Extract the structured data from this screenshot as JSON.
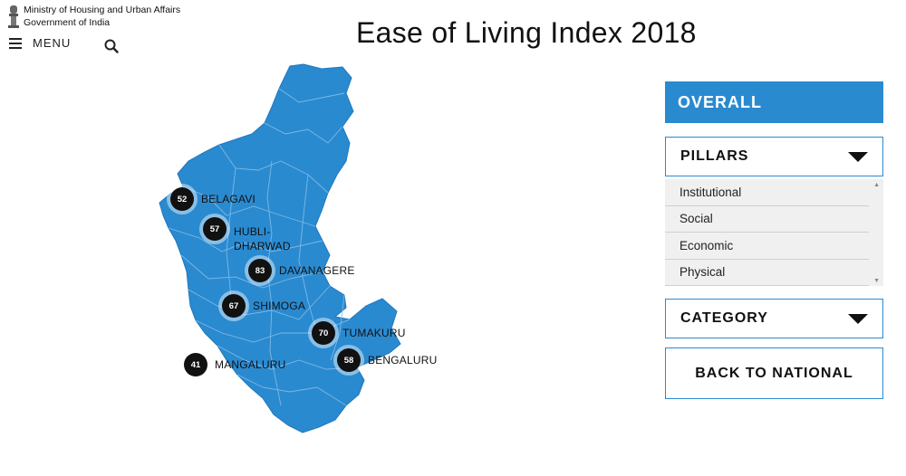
{
  "header": {
    "ministry_line1": "Ministry of Housing and Urban Affairs",
    "ministry_line2": "Government of India",
    "menu_label": "MENU",
    "title": "Ease of Living Index 2018"
  },
  "map": {
    "state_fill": "#2a8ad0",
    "cities": [
      {
        "name": "BELAGAVI",
        "score": "52"
      },
      {
        "name": "HUBLI-\nDHARWAD",
        "score": "57"
      },
      {
        "name": "DAVANAGERE",
        "score": "83"
      },
      {
        "name": "SHIMOGA",
        "score": "67"
      },
      {
        "name": "TUMAKURU",
        "score": "70"
      },
      {
        "name": "MANGALURU",
        "score": "41"
      },
      {
        "name": "BENGALURU",
        "score": "58"
      }
    ]
  },
  "panel": {
    "overall_label": "OVERALL",
    "pillars_label": "PILLARS",
    "pillar_options": [
      "Institutional",
      "Social",
      "Economic",
      "Physical"
    ],
    "category_label": "CATEGORY",
    "back_label": "BACK TO NATIONAL"
  },
  "icons": [
    "emblem-icon",
    "hamburger-icon",
    "search-icon",
    "caret-down-icon"
  ]
}
